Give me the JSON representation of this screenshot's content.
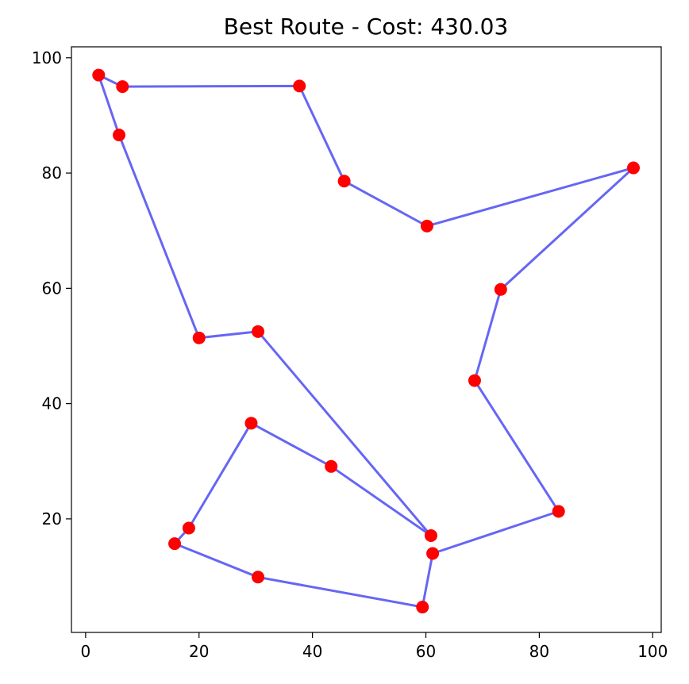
{
  "chart_data": {
    "type": "scatter",
    "title": "Best Route - Cost: 430.03",
    "xlabel": "",
    "ylabel": "",
    "xlim": [
      -2.5,
      101.5
    ],
    "ylim": [
      0.3,
      101.9
    ],
    "xticks": [
      0,
      20,
      40,
      60,
      80,
      100
    ],
    "yticks": [
      20,
      40,
      60,
      80,
      100
    ],
    "grid": false,
    "colors": {
      "route": "#0000ee",
      "points": "#ff0000"
    },
    "route_closed": false,
    "route": [
      {
        "x": 2.3,
        "y": 97.0
      },
      {
        "x": 6.5,
        "y": 95.0
      },
      {
        "x": 37.7,
        "y": 95.1
      },
      {
        "x": 45.6,
        "y": 78.6
      },
      {
        "x": 60.2,
        "y": 70.8
      },
      {
        "x": 96.6,
        "y": 80.9
      },
      {
        "x": 73.2,
        "y": 59.8
      },
      {
        "x": 68.6,
        "y": 44.0
      },
      {
        "x": 83.4,
        "y": 21.3
      },
      {
        "x": 61.2,
        "y": 14.0
      },
      {
        "x": 59.4,
        "y": 4.7
      },
      {
        "x": 30.4,
        "y": 9.9
      },
      {
        "x": 15.7,
        "y": 15.7
      },
      {
        "x": 18.2,
        "y": 18.4
      },
      {
        "x": 29.2,
        "y": 36.6
      },
      {
        "x": 43.3,
        "y": 29.1
      },
      {
        "x": 60.9,
        "y": 17.1
      },
      {
        "x": 30.4,
        "y": 52.5
      },
      {
        "x": 20.0,
        "y": 51.4
      },
      {
        "x": 5.9,
        "y": 86.6
      },
      {
        "x": 2.3,
        "y": 97.0
      }
    ]
  }
}
